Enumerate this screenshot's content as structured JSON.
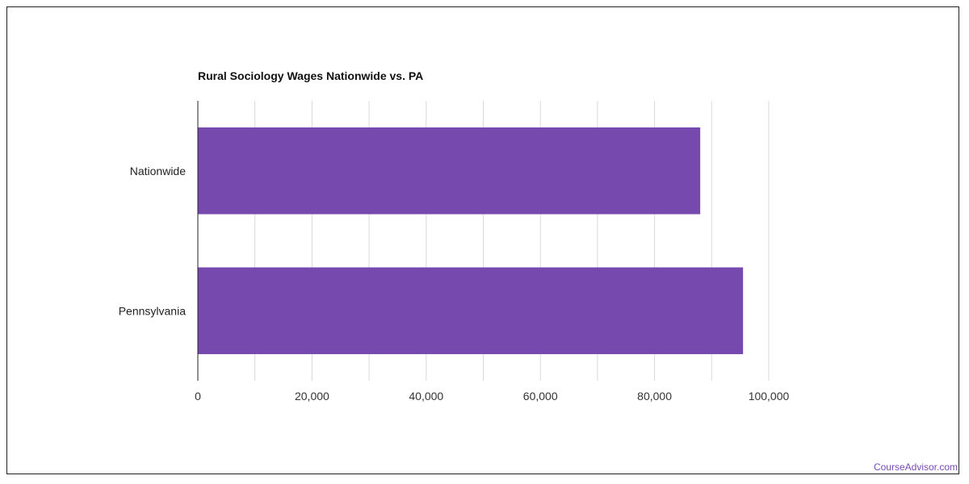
{
  "watermark": "CourseAdvisor.com",
  "colors": {
    "bar": "#7549ae",
    "grid": "#d9d9d9",
    "axis": "#222222"
  },
  "chart_data": {
    "type": "bar",
    "orientation": "horizontal",
    "title": "Rural Sociology Wages Nationwide vs. PA",
    "categories": [
      "Nationwide",
      "Pennsylvania"
    ],
    "values": [
      88000,
      95500
    ],
    "xlim": [
      0,
      100000
    ],
    "x_ticks": [
      0,
      20000,
      40000,
      60000,
      80000,
      100000
    ],
    "x_tick_labels": [
      "0",
      "20,000",
      "40,000",
      "60,000",
      "80,000",
      "100,000"
    ],
    "xlabel": "",
    "ylabel": "",
    "grid": true,
    "legend": "none"
  }
}
